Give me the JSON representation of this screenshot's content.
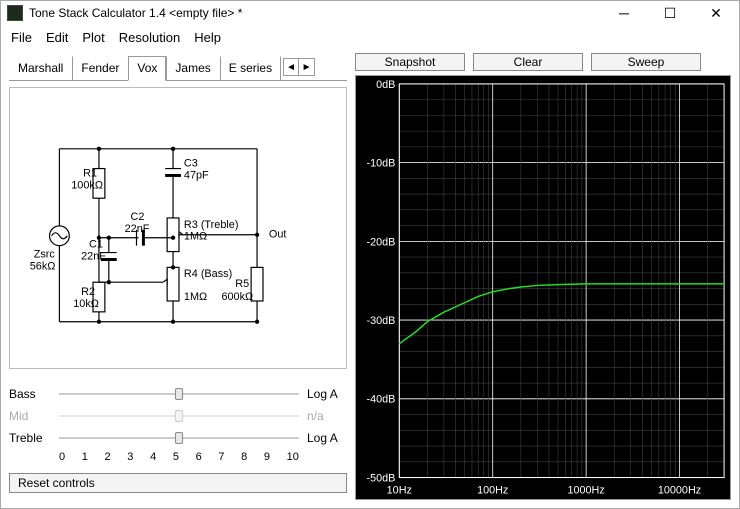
{
  "window": {
    "title": "Tone Stack Calculator 1.4 <empty file> *"
  },
  "menu": {
    "file": "File",
    "edit": "Edit",
    "plot": "Plot",
    "resolution": "Resolution",
    "help": "Help"
  },
  "tabs": {
    "items": [
      "Marshall",
      "Fender",
      "Vox",
      "James",
      "E series"
    ],
    "active_index": 2,
    "arrow_left": "◄",
    "arrow_right": "►"
  },
  "toolbar": {
    "snapshot": "Snapshot",
    "clear": "Clear",
    "sweep": "Sweep"
  },
  "circuit": {
    "components": {
      "Zsrc": {
        "label": "Zsrc",
        "value": "56kΩ"
      },
      "R1": {
        "label": "R1",
        "value": "100kΩ"
      },
      "R2": {
        "label": "R2",
        "value": "10kΩ"
      },
      "R3": {
        "label": "R3 (Treble)",
        "value": "1MΩ"
      },
      "R4": {
        "label": "R4 (Bass)",
        "value": "1MΩ"
      },
      "R5": {
        "label": "R5",
        "value": "600kΩ"
      },
      "C1": {
        "label": "C1",
        "value": "22nF"
      },
      "C2": {
        "label": "C2",
        "value": "22nF"
      },
      "C3": {
        "label": "C3",
        "value": "47pF"
      },
      "Out": {
        "label": "Out"
      }
    }
  },
  "sliders": {
    "bass": {
      "label": "Bass",
      "type": "Log A",
      "value": 5,
      "min": 0,
      "max": 10,
      "enabled": true
    },
    "mid": {
      "label": "Mid",
      "type": "n/a",
      "value": 5,
      "min": 0,
      "max": 10,
      "enabled": false
    },
    "treble": {
      "label": "Treble",
      "type": "Log A",
      "value": 5,
      "min": 0,
      "max": 10,
      "enabled": true
    },
    "scale": [
      "0",
      "1",
      "2",
      "3",
      "4",
      "5",
      "6",
      "7",
      "8",
      "9",
      "10"
    ]
  },
  "reset_button": "Reset controls",
  "chart": {
    "type": "line-bode",
    "background_color": "#000000",
    "grid_color": "#404040",
    "axis_color": "#ffffff",
    "tick_font_size": 11,
    "x": {
      "scale": "log",
      "min": 10,
      "max": 30000,
      "decade_labels": [
        "10Hz",
        "100Hz",
        "1000Hz",
        "10000Hz"
      ]
    },
    "y": {
      "scale": "linear",
      "min": -50,
      "max": 0,
      "step": 10,
      "labels": [
        "0dB",
        "-10dB",
        "-20dB",
        "-30dB",
        "-40dB",
        "-50dB"
      ]
    },
    "series": [
      {
        "name": "response",
        "color": "#20e020",
        "line_width": 1.5,
        "points": [
          [
            10,
            -33.0
          ],
          [
            15,
            -31.5
          ],
          [
            20,
            -30.2
          ],
          [
            30,
            -29.0
          ],
          [
            50,
            -27.8
          ],
          [
            70,
            -27.0
          ],
          [
            100,
            -26.4
          ],
          [
            150,
            -26.0
          ],
          [
            200,
            -25.8
          ],
          [
            300,
            -25.6
          ],
          [
            500,
            -25.5
          ],
          [
            1000,
            -25.4
          ],
          [
            2000,
            -25.4
          ],
          [
            5000,
            -25.4
          ],
          [
            10000,
            -25.4
          ],
          [
            30000,
            -25.4
          ]
        ]
      }
    ]
  }
}
